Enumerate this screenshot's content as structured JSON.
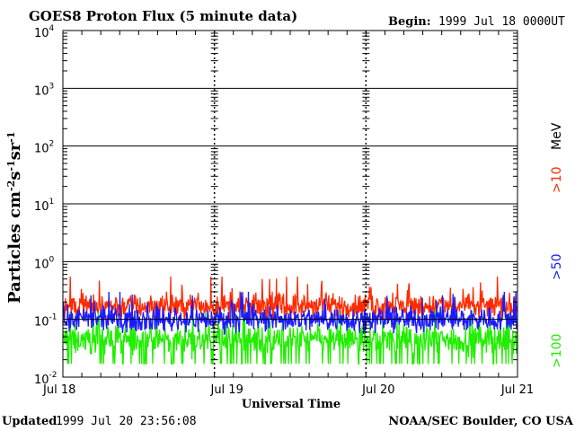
{
  "header": {
    "title": "GOES8 Proton Flux (5 minute data)",
    "begin_label": "Begin:",
    "begin_value": "1999 Jul 18 0000UT"
  },
  "footer": {
    "updated_label": "Updated",
    "updated_value": "1999 Jul 20 23:56:08",
    "source": "NOAA/SEC Boulder, CO USA"
  },
  "chart_data": {
    "type": "line",
    "title": "GOES8 Proton Flux (5 minute data)",
    "xlabel": "Universal Time",
    "ylabel": "Particles cm-2s-1sr-1",
    "yscale": "log",
    "ylim": [
      0.01,
      10000
    ],
    "xlim": [
      0,
      3
    ],
    "x_unit": "days since 1999 Jul 18 00:00 UT",
    "x_ticks": [
      {
        "value": 0,
        "label": "Jul 18"
      },
      {
        "value": 1,
        "label": "Jul 19"
      },
      {
        "value": 2,
        "label": "Jul 20"
      },
      {
        "value": 3,
        "label": "Jul 21"
      }
    ],
    "y_ticks": [
      {
        "value": 0.01,
        "base": "10",
        "exp": "-2"
      },
      {
        "value": 0.1,
        "base": "10",
        "exp": "-1"
      },
      {
        "value": 1,
        "base": "10",
        "exp": "0"
      },
      {
        "value": 10,
        "base": "10",
        "exp": "1"
      },
      {
        "value": 100,
        "base": "10",
        "exp": "2"
      },
      {
        "value": 1000,
        "base": "10",
        "exp": "3"
      },
      {
        "value": 10000,
        "base": "10",
        "exp": "4"
      }
    ],
    "grid": true,
    "legend_position": "right",
    "legend_unit": "MeV",
    "series": [
      {
        "name": ">10",
        "color": "#ff2a00",
        "typical": 0.17,
        "min": 0.09,
        "max": 0.55
      },
      {
        "name": ">50",
        "color": "#1a1aff",
        "typical": 0.1,
        "min": 0.05,
        "max": 0.3
      },
      {
        "name": ">100",
        "color": "#22ee00",
        "typical": 0.045,
        "min": 0.017,
        "max": 0.15
      }
    ]
  }
}
